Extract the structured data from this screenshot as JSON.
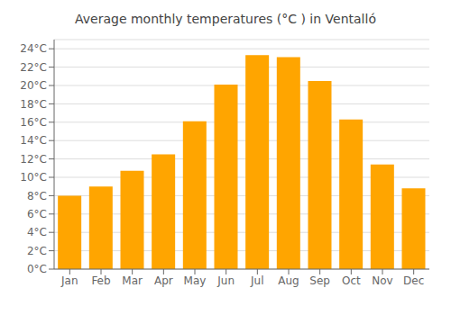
{
  "chart_data": {
    "type": "bar",
    "title": "Average monthly temperatures (°C ) in Ventalló",
    "categories": [
      "Jan",
      "Feb",
      "Mar",
      "Apr",
      "May",
      "Jun",
      "Jul",
      "Aug",
      "Sep",
      "Oct",
      "Nov",
      "Dec"
    ],
    "values": [
      8.0,
      9.0,
      10.7,
      12.5,
      16.1,
      20.1,
      23.3,
      23.1,
      20.5,
      16.3,
      11.4,
      8.8
    ],
    "color": "#FFA500",
    "ylim": [
      0,
      25
    ],
    "yticks": [
      {
        "value": 0,
        "label": "0°C"
      },
      {
        "value": 2,
        "label": "2°C"
      },
      {
        "value": 4,
        "label": "4°C"
      },
      {
        "value": 6,
        "label": "6°C"
      },
      {
        "value": 8,
        "label": "8°C"
      },
      {
        "value": 10,
        "label": "10°C"
      },
      {
        "value": 12,
        "label": "12°C"
      },
      {
        "value": 14,
        "label": "14°C"
      },
      {
        "value": 16,
        "label": "16°C"
      },
      {
        "value": 18,
        "label": "18°C"
      },
      {
        "value": 20,
        "label": "20°C"
      },
      {
        "value": 22,
        "label": "22°C"
      },
      {
        "value": 24,
        "label": "24°C"
      }
    ],
    "grid": true
  }
}
